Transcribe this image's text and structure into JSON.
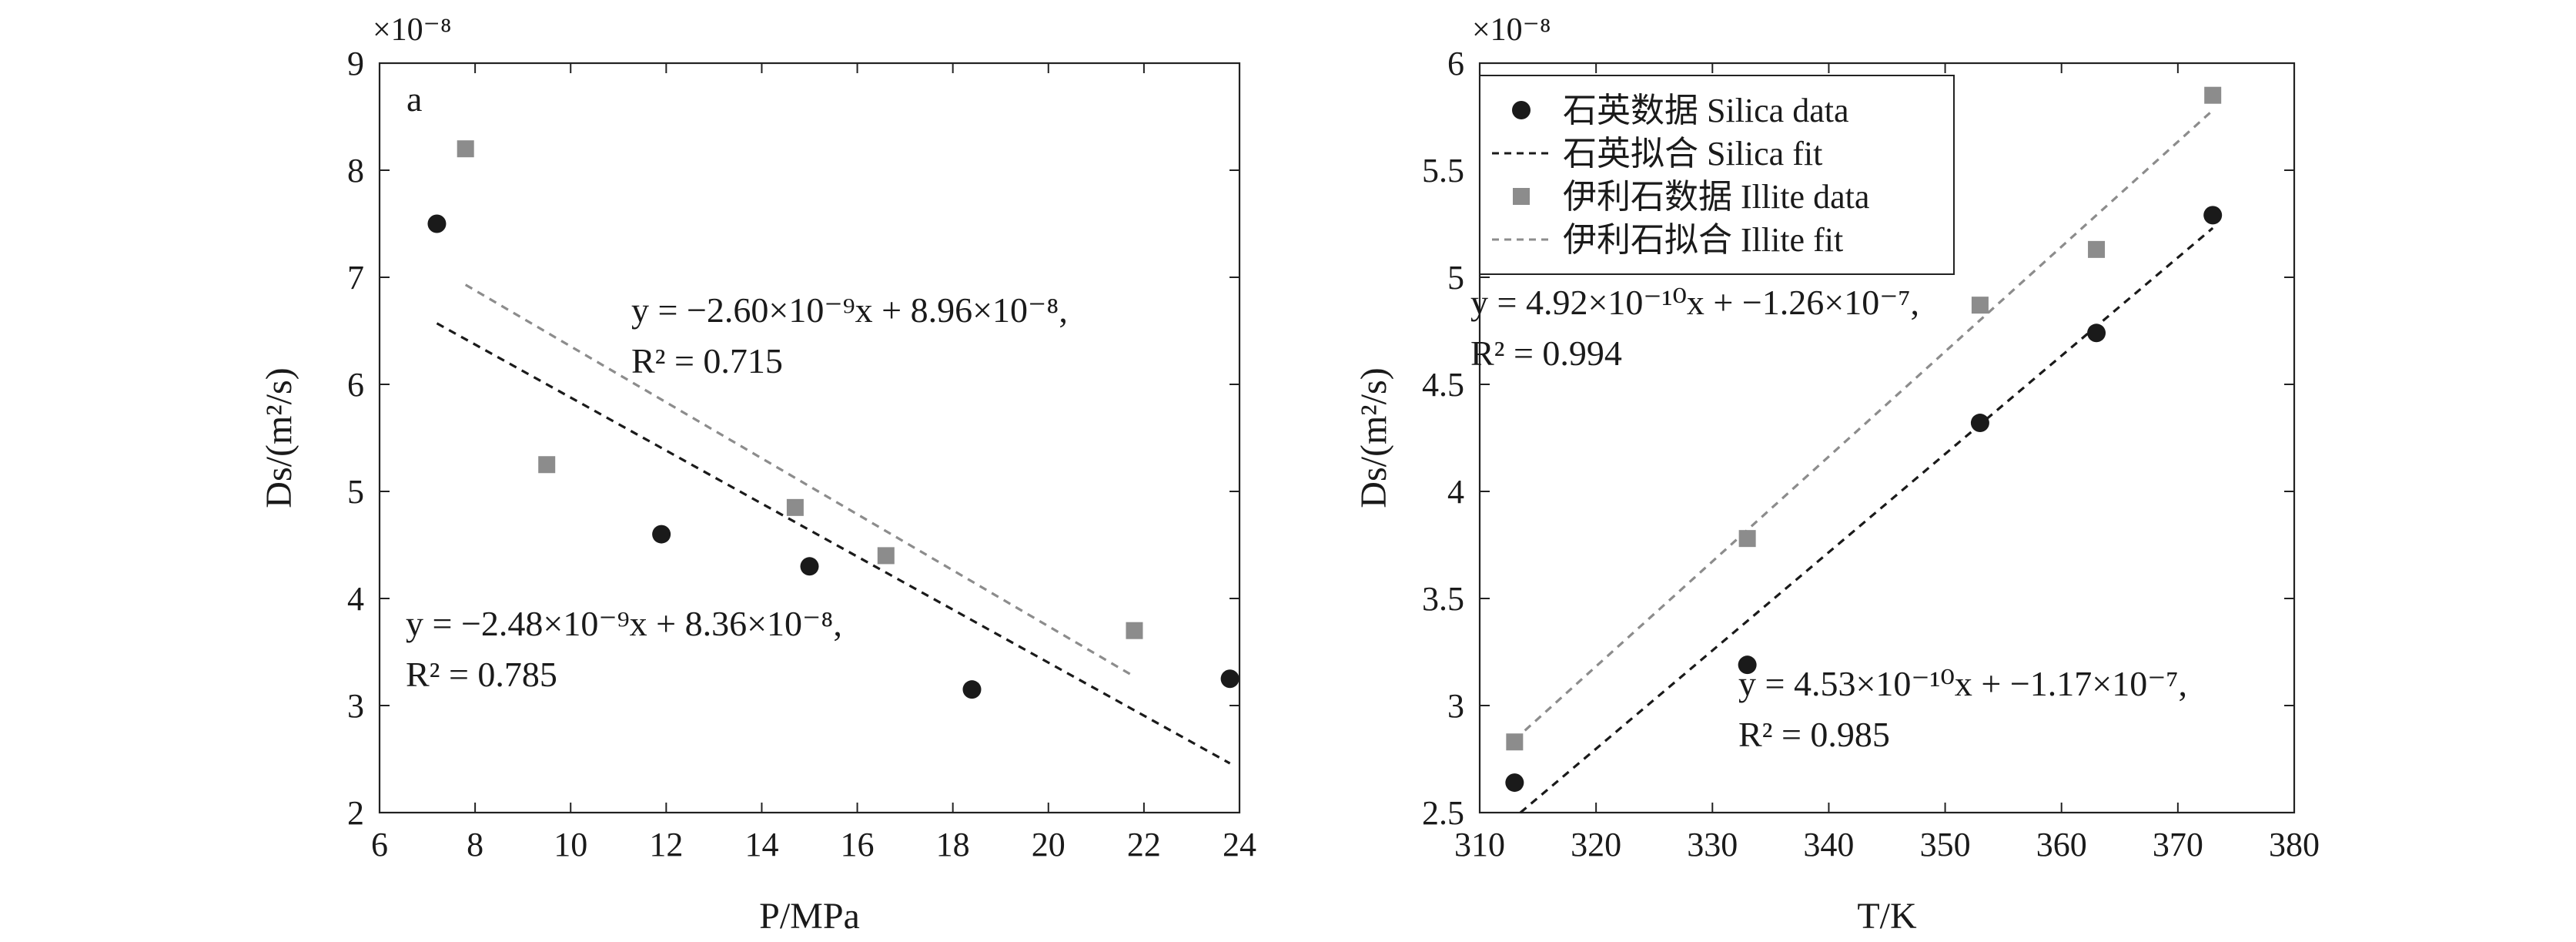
{
  "chart_data": [
    {
      "type": "scatter",
      "panel_label": "a",
      "xlabel": "P/MPa",
      "ylabel": "Ds/(m²/s)",
      "y_scale_label": "×10⁻⁸",
      "xlim": [
        6,
        24
      ],
      "ylim": [
        2,
        9
      ],
      "xticks": [
        6,
        8,
        10,
        12,
        14,
        16,
        18,
        20,
        22,
        24
      ],
      "yticks": [
        2,
        3,
        4,
        5,
        6,
        7,
        8,
        9
      ],
      "grid": false,
      "series": [
        {
          "marker": "circle",
          "color": "#1a1a1a",
          "points": [
            [
              7.2,
              7.5
            ],
            [
              11.9,
              4.6
            ],
            [
              15.0,
              4.3
            ],
            [
              18.4,
              3.15
            ],
            [
              23.8,
              3.25
            ]
          ]
        },
        {
          "marker": "square",
          "color": "#8c8c8c",
          "points": [
            [
              7.8,
              8.2
            ],
            [
              9.5,
              5.25
            ],
            [
              14.7,
              4.85
            ],
            [
              16.6,
              4.4
            ],
            [
              21.8,
              3.7
            ]
          ]
        }
      ],
      "fits": [
        {
          "color": "#1a1a1a",
          "x": [
            7.2,
            23.8
          ],
          "y": [
            6.57,
            2.46
          ]
        },
        {
          "color": "#8c8c8c",
          "x": [
            7.8,
            21.8
          ],
          "y": [
            6.93,
            3.27
          ]
        }
      ],
      "annotations": [
        {
          "line1": "y = −2.60×10⁻⁹x + 8.96×10⁻⁸,",
          "line2": "R² = 0.715"
        },
        {
          "line1": "y = −2.48×10⁻⁹x + 8.36×10⁻⁸,",
          "line2": "R² = 0.785"
        }
      ]
    },
    {
      "type": "scatter",
      "xlabel": "T/K",
      "ylabel": "Ds/(m²/s)",
      "y_scale_label": "×10⁻⁸",
      "xlim": [
        310,
        380
      ],
      "ylim": [
        2.5,
        6
      ],
      "xticks": [
        310,
        320,
        330,
        340,
        350,
        360,
        370,
        380
      ],
      "yticks": [
        2.5,
        3,
        3.5,
        4,
        4.5,
        5,
        5.5,
        6
      ],
      "grid": false,
      "legend": {
        "placement": "top-left",
        "entries": [
          {
            "label": "石英数据 Silica data",
            "kind": "circle",
            "color": "#1a1a1a"
          },
          {
            "label": "石英拟合 Silica fit",
            "kind": "dash",
            "color": "#1a1a1a"
          },
          {
            "label": "伊利石数据 Illite data",
            "kind": "square",
            "color": "#8c8c8c"
          },
          {
            "label": "伊利石拟合 Illite fit",
            "kind": "dash",
            "color": "#8c8c8c"
          }
        ]
      },
      "series": [
        {
          "name": "石英数据 Silica data",
          "marker": "circle",
          "color": "#1a1a1a",
          "points": [
            [
              313,
              2.64
            ],
            [
              333,
              3.19
            ],
            [
              353,
              4.32
            ],
            [
              363,
              4.74
            ],
            [
              373,
              5.29
            ]
          ]
        },
        {
          "name": "伊利石数据 Illite data",
          "marker": "square",
          "color": "#8c8c8c",
          "points": [
            [
              313,
              2.83
            ],
            [
              333,
              3.78
            ],
            [
              353,
              4.87
            ],
            [
              363,
              5.13
            ],
            [
              373,
              5.85
            ]
          ]
        }
      ],
      "fits": [
        {
          "name": "石英拟合 Silica fit",
          "color": "#1a1a1a",
          "x": [
            313.5,
            373
          ],
          "y": [
            2.5,
            5.23
          ]
        },
        {
          "name": "伊利石拟合 Illite fit",
          "color": "#8c8c8c",
          "x": [
            313,
            373
          ],
          "y": [
            2.84,
            5.78
          ]
        }
      ],
      "annotations": [
        {
          "line1": "y = 4.92×10⁻¹⁰x + −1.26×10⁻⁷,",
          "line2": "R² = 0.994"
        },
        {
          "line1": "y = 4.53×10⁻¹⁰x + −1.17×10⁻⁷,",
          "line2": "R² = 0.985"
        }
      ]
    }
  ]
}
